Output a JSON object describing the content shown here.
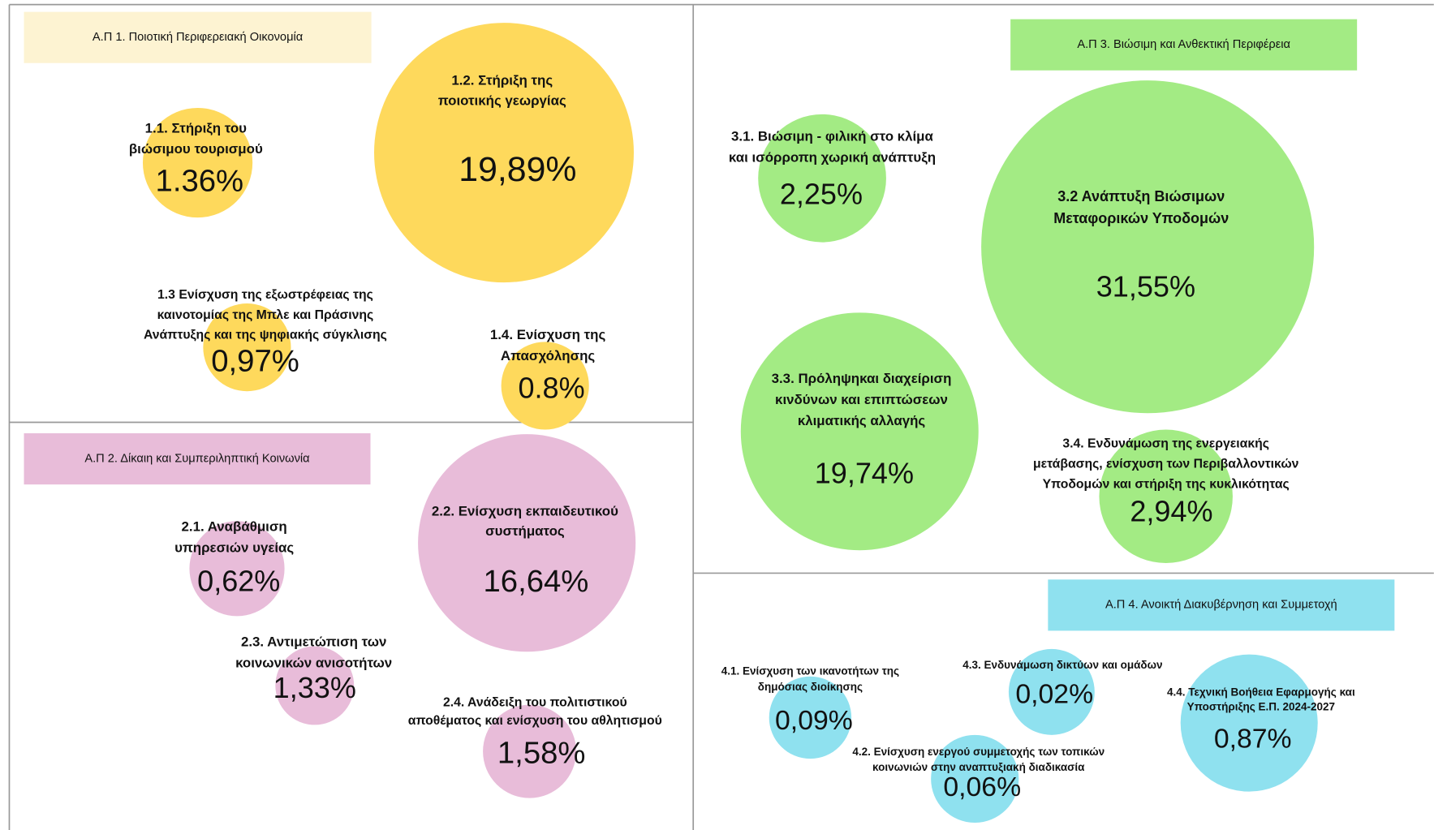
{
  "panels": [
    {
      "header": "Α.Π 1. Ποιοτική Περιφερειακή Οικονομία",
      "items": [
        {
          "lines": [
            "1.1. Στήριξη του",
            "βιώσιμου τουρισμού"
          ],
          "value": "1.36%"
        },
        {
          "lines": [
            "1.2. Στήριξη της",
            "ποιοτικής γεωργίας"
          ],
          "value": "19,89%"
        },
        {
          "lines": [
            "1.3 Ενίσχυση της εξωστρέφειας της",
            "καινοτομίας της Μπλε και Πράσινης",
            "Ανάπτυξης και της ψηφιακής σύγκλισης"
          ],
          "value": "0,97%"
        },
        {
          "lines": [
            "1.4.  Ενίσχυση της",
            "Απασχόλησης"
          ],
          "value": "0.8%"
        }
      ]
    },
    {
      "header": "Α.Π 2. Δίκαιη και Συμπεριληπτική Κοινωνία",
      "items": [
        {
          "lines": [
            "2.1. Αναβάθμιση",
            "υπηρεσιών υγείας"
          ],
          "value": "0,62%"
        },
        {
          "lines": [
            "2.2. Ενίσχυση εκπαιδευτικού",
            "συστήματος"
          ],
          "value": "16,64%"
        },
        {
          "lines": [
            "2.3. Αντιμετώπιση των",
            "κοινωνικών ανισοτήτων"
          ],
          "value": "1,33%"
        },
        {
          "lines": [
            "2.4. Ανάδειξη του πολιτιστικού",
            "αποθέματος και ενίσχυση του αθλητισμού"
          ],
          "value": "1,58%"
        }
      ]
    },
    {
      "header": "Α.Π  3. Βιώσιμη και Ανθεκτική Περιφέρεια",
      "items": [
        {
          "lines": [
            "3.1. Βιώσιμη - φιλική στο κλίμα",
            "και ισόρροπη χωρική ανάπτυξη"
          ],
          "value": "2,25%"
        },
        {
          "lines": [
            "3.2 Ανάπτυξη Βιώσιμων",
            "Μεταφορικών Υποδομών"
          ],
          "value": "31,55%"
        },
        {
          "lines": [
            "3.3. Πρόληψηκαι διαχείριση",
            "κινδύνων και επιπτώσεων",
            "κλιματικής αλλαγής"
          ],
          "value": "19,74%"
        },
        {
          "lines": [
            "3.4. Ενδυνάμωση της ενεργειακής",
            "μετάβασης, ενίσχυση των Περιβαλλοντικών",
            "Υποδομών και στήριξη της κυκλικότητας"
          ],
          "value": "2,94%"
        }
      ]
    },
    {
      "header": "Α.Π 4. Ανοικτή Διακυβέρνηση και Συμμετοχή",
      "items": [
        {
          "lines": [
            "4.1. Ενίσχυση των ικανοτήτων της",
            "δημόσιας διοίκησης"
          ],
          "value": "0,09%"
        },
        {
          "lines": [
            "4.3. Ενδυνάμωση δικτύων και ομάδων"
          ],
          "value": "0,02%"
        },
        {
          "lines": [
            "4.4. Τεχνική Βοήθεια Εφαρμογής και",
            "Υποστήριξης Ε.Π. 2024-2027"
          ],
          "value": "0,87%"
        },
        {
          "lines": [
            "4.2. Ενίσχυση ενεργού συμμετοχής των τοπικών",
            "κοινωνιών στην αναπτυξιακή διαδικασία"
          ],
          "value": "0,06%"
        }
      ]
    }
  ]
}
